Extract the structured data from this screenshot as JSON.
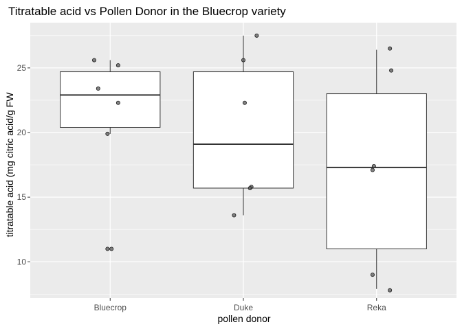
{
  "chart_data": {
    "type": "box",
    "title": "Titratable acid vs Pollen Donor in the Bluecrop variety",
    "xlabel": "pollen donor",
    "ylabel": "titratable acid (mg citric acid/g FW",
    "ylim": [
      7.2,
      28.5
    ],
    "yticks": [
      10,
      15,
      20,
      25
    ],
    "categories": [
      "Bluecrop",
      "Duke",
      "Reka"
    ],
    "boxes": [
      {
        "category": "Bluecrop",
        "min": 19.9,
        "q1": 20.4,
        "median": 22.9,
        "q3": 24.7,
        "max": 25.6
      },
      {
        "category": "Duke",
        "min": 13.6,
        "q1": 15.7,
        "median": 19.1,
        "q3": 24.7,
        "max": 27.5
      },
      {
        "category": "Reka",
        "min": 7.9,
        "q1": 11.0,
        "median": 17.3,
        "q3": 23.0,
        "max": 26.4
      }
    ],
    "points": [
      {
        "category": "Bluecrop",
        "jitter": -0.12,
        "y": 25.6
      },
      {
        "category": "Bluecrop",
        "jitter": 0.06,
        "y": 25.2
      },
      {
        "category": "Bluecrop",
        "jitter": -0.09,
        "y": 23.4
      },
      {
        "category": "Bluecrop",
        "jitter": 0.06,
        "y": 22.3
      },
      {
        "category": "Bluecrop",
        "jitter": -0.02,
        "y": 19.9
      },
      {
        "category": "Bluecrop",
        "jitter": -0.02,
        "y": 11.0
      },
      {
        "category": "Bluecrop",
        "jitter": 0.01,
        "y": 11.0
      },
      {
        "category": "Duke",
        "jitter": 0.1,
        "y": 27.5
      },
      {
        "category": "Duke",
        "jitter": 0.0,
        "y": 25.6
      },
      {
        "category": "Duke",
        "jitter": 0.01,
        "y": 22.3
      },
      {
        "category": "Duke",
        "jitter": 0.06,
        "y": 15.8
      },
      {
        "category": "Duke",
        "jitter": 0.05,
        "y": 15.7
      },
      {
        "category": "Duke",
        "jitter": -0.07,
        "y": 13.6
      },
      {
        "category": "Reka",
        "jitter": 0.1,
        "y": 26.5
      },
      {
        "category": "Reka",
        "jitter": 0.11,
        "y": 24.8
      },
      {
        "category": "Reka",
        "jitter": -0.02,
        "y": 17.4
      },
      {
        "category": "Reka",
        "jitter": -0.03,
        "y": 17.1
      },
      {
        "category": "Reka",
        "jitter": -0.03,
        "y": 9.0
      },
      {
        "category": "Reka",
        "jitter": 0.1,
        "y": 7.8
      }
    ],
    "grid": true,
    "legend": "none"
  },
  "style": {
    "panel_bg": "#ebebeb",
    "grid_major": "#ffffff",
    "box_fill": "#ffffff",
    "box_stroke": "#333333",
    "point_fill": "#5a5a5a",
    "point_stroke": "#1a1a1a",
    "tick_label_color": "#4d4d4d",
    "text_color": "#000000"
  }
}
